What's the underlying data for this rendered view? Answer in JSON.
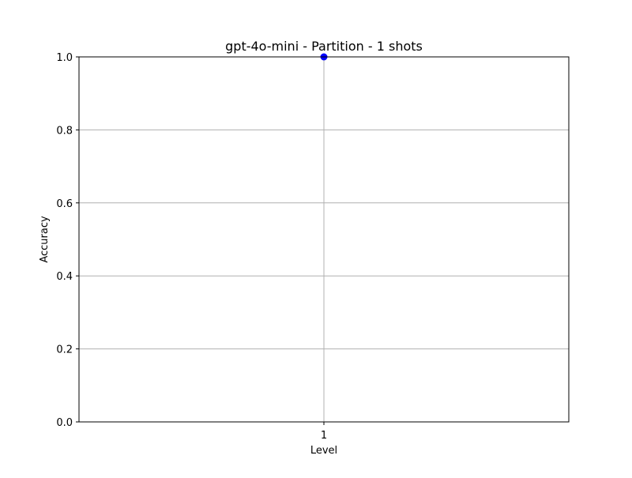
{
  "chart_data": {
    "type": "line",
    "title": "gpt-4o-mini - Partition - 1 shots",
    "xlabel": "Level",
    "ylabel": "Accuracy",
    "categories": [
      "1"
    ],
    "x": [
      1
    ],
    "series": [
      {
        "values": [
          1.0
        ],
        "color": "#0000ff",
        "marker": "circle"
      }
    ],
    "ylim": [
      0.0,
      1.0
    ],
    "yticks": [
      0.0,
      0.2,
      0.4,
      0.6,
      0.8,
      1.0
    ],
    "ytick_labels": [
      "0.0",
      "0.2",
      "0.4",
      "0.6",
      "0.8",
      "1.0"
    ],
    "xticks": [
      1
    ],
    "xtick_labels": [
      "1"
    ],
    "grid": true,
    "grid_color": "#b0b0b0",
    "axis_color": "#000000"
  }
}
